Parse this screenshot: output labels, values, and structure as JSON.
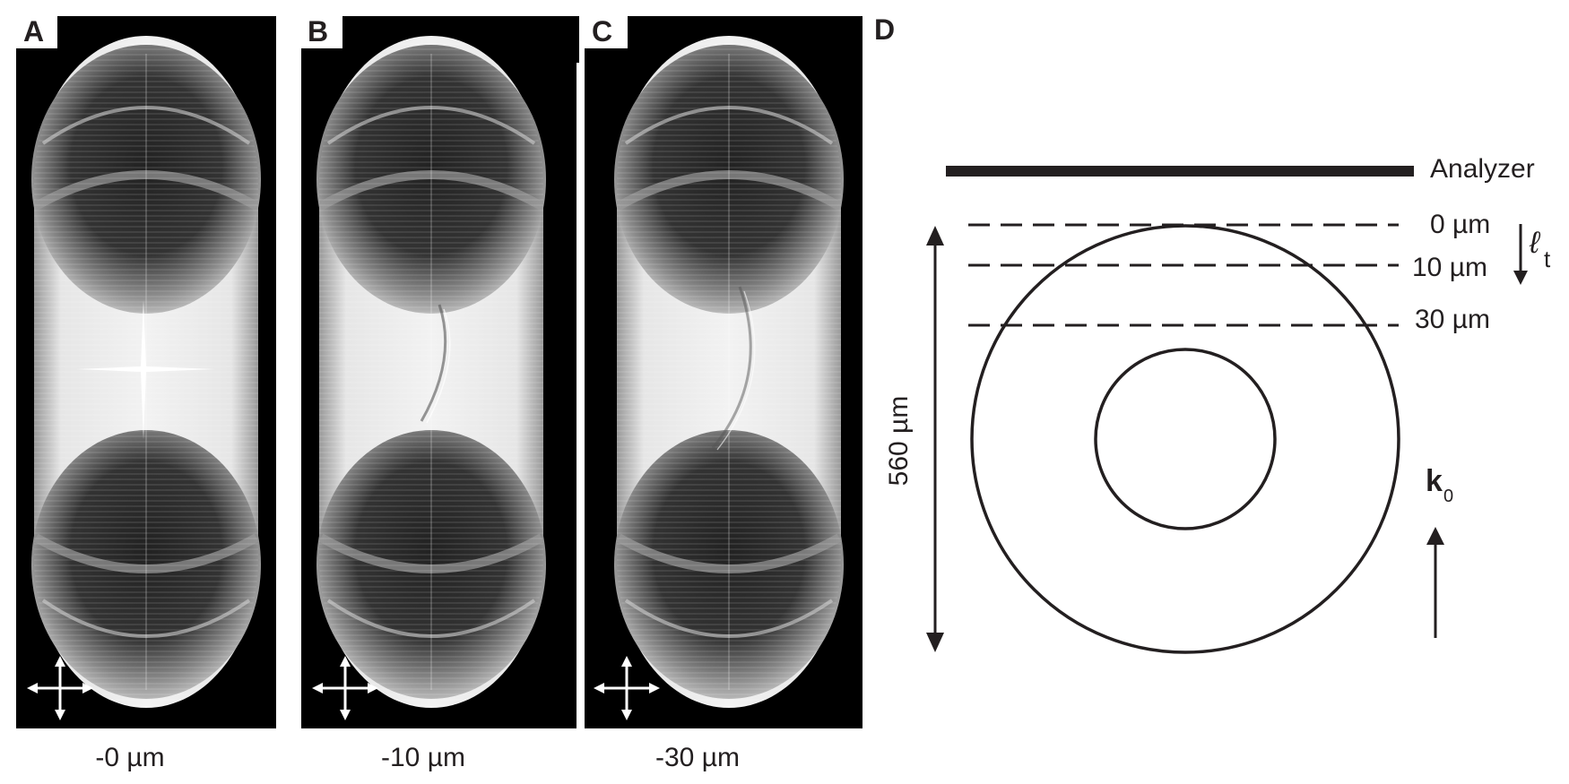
{
  "panels": [
    {
      "letter": "A",
      "caption": "-0 µm"
    },
    {
      "letter": "B",
      "caption": "-10 µm"
    },
    {
      "letter": "C",
      "caption": "-30 µm"
    }
  ],
  "polarizer_icon": "crossed-polarizers-arrows-icon",
  "schematic": {
    "letter": "D",
    "analyzer_label": "Analyzer",
    "depth_labels": [
      "0 µm",
      "10 µm",
      "30 µm"
    ],
    "thickness_symbol": "ℓ",
    "thickness_subscript": "t",
    "diameter_label": "560 µm",
    "wavevector_symbol": "k",
    "wavevector_subscript": "0"
  },
  "colors": {
    "ink": "#231f20",
    "panel_background": "#000000",
    "label_box": "#ffffff"
  }
}
